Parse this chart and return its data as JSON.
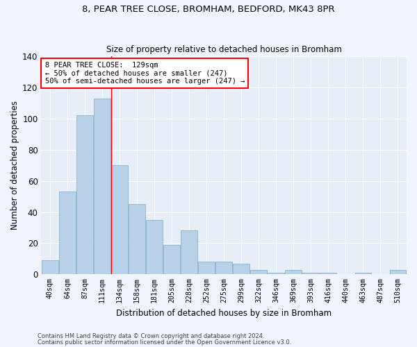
{
  "title_line1": "8, PEAR TREE CLOSE, BROMHAM, BEDFORD, MK43 8PR",
  "title_line2": "Size of property relative to detached houses in Bromham",
  "xlabel": "Distribution of detached houses by size in Bromham",
  "ylabel": "Number of detached properties",
  "bar_color": "#b8d0e8",
  "bar_edge_color": "#7aaac8",
  "categories": [
    "40sqm",
    "64sqm",
    "87sqm",
    "111sqm",
    "134sqm",
    "158sqm",
    "181sqm",
    "205sqm",
    "228sqm",
    "252sqm",
    "275sqm",
    "299sqm",
    "322sqm",
    "346sqm",
    "369sqm",
    "393sqm",
    "416sqm",
    "440sqm",
    "463sqm",
    "487sqm",
    "510sqm"
  ],
  "values": [
    9,
    53,
    102,
    113,
    70,
    45,
    35,
    19,
    28,
    8,
    8,
    7,
    3,
    1,
    3,
    1,
    1,
    0,
    1,
    0,
    3
  ],
  "ylim": [
    0,
    140
  ],
  "yticks": [
    0,
    20,
    40,
    60,
    80,
    100,
    120,
    140
  ],
  "red_line_index": 3.5,
  "annotation_text_line1": "8 PEAR TREE CLOSE:  129sqm",
  "annotation_text_line2": "← 50% of detached houses are smaller (247)",
  "annotation_text_line3": "50% of semi-detached houses are larger (247) →",
  "background_color": "#e8eef8",
  "grid_color": "#ffffff",
  "footer_line1": "Contains HM Land Registry data © Crown copyright and database right 2024.",
  "footer_line2": "Contains public sector information licensed under the Open Government Licence v3.0."
}
